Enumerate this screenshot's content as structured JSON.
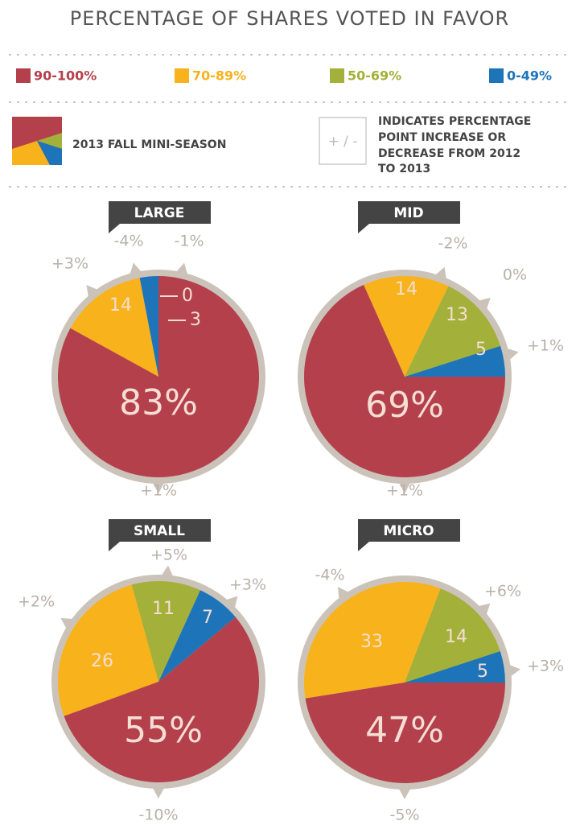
{
  "title": "PERCENTAGE OF SHARES VOTED IN FAVOR",
  "legend": {
    "categories": [
      "90-100%",
      "70-89%",
      "50-69%",
      "0-49%"
    ],
    "colors": [
      "#b4404c",
      "#f8b21c",
      "#a3b03a",
      "#1e74b9"
    ]
  },
  "key": {
    "label": "2013 FALL MINI-SEASON",
    "symbol": "+ / -",
    "text": [
      "INDICATES PERCENTAGE",
      "POINT INCREASE OR",
      "DECREASE FROM 2012",
      "TO 2013"
    ]
  },
  "chart_data": [
    {
      "type": "pie",
      "title": "LARGE",
      "values": [
        83,
        14,
        0,
        3
      ],
      "value_labels": [
        "83%",
        "14",
        "0",
        "3"
      ],
      "change_values": [
        1,
        3,
        -4,
        -1
      ],
      "change_labels": [
        "+1%",
        "+3%",
        "-4%",
        "-1%"
      ]
    },
    {
      "type": "pie",
      "title": "MID",
      "values": [
        69,
        14,
        13,
        5
      ],
      "value_labels": [
        "69%",
        "14",
        "13",
        "5"
      ],
      "change_values": [
        1,
        -2,
        0,
        1
      ],
      "change_labels": [
        "+1%",
        "-2%",
        "0%",
        "+1%"
      ]
    },
    {
      "type": "pie",
      "title": "SMALL",
      "values": [
        55,
        26,
        11,
        7
      ],
      "value_labels": [
        "55%",
        "26",
        "11",
        "7"
      ],
      "change_values": [
        -10,
        2,
        5,
        3
      ],
      "change_labels": [
        "-10%",
        "+2%",
        "+5%",
        "+3%"
      ]
    },
    {
      "type": "pie",
      "title": "MICRO",
      "values": [
        47,
        33,
        14,
        5
      ],
      "value_labels": [
        "47%",
        "33",
        "14",
        "5"
      ],
      "change_values": [
        -5,
        -4,
        6,
        3
      ],
      "change_labels": [
        "-5%",
        "-4%",
        "+6%",
        "+3%"
      ]
    }
  ]
}
